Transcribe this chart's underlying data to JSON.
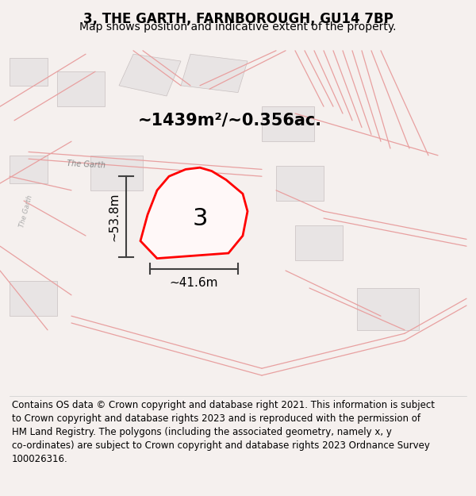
{
  "title": "3, THE GARTH, FARNBOROUGH, GU14 7BP",
  "subtitle": "Map shows position and indicative extent of the property.",
  "area_label": "~1439m²/~0.356ac.",
  "number_label": "3",
  "width_label": "~41.6m",
  "height_label": "~53.8m",
  "road_label": "The Garth",
  "road_label2": "The Garth",
  "footer_text": "Contains OS data © Crown copyright and database right 2021. This information is subject\nto Crown copyright and database rights 2023 and is reproduced with the permission of\nHM Land Registry. The polygons (including the associated geometry, namely x, y\nco-ordinates) are subject to Crown copyright and database rights 2023 Ordnance Survey\n100026316.",
  "road_lines_color": "#e8a0a0",
  "plot_color": "#ff0000",
  "dimension_color": "#404040",
  "footer_fontsize": 8.5,
  "title_fontsize": 12,
  "subtitle_fontsize": 10
}
